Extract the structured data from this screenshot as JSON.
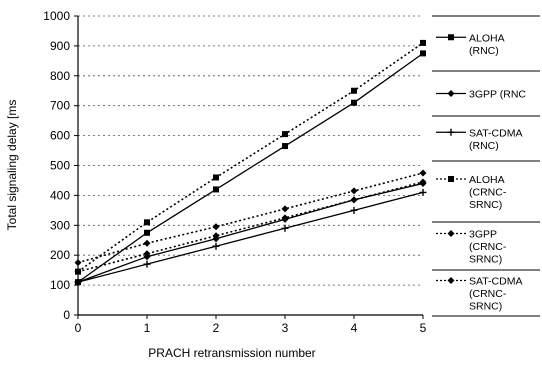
{
  "chart_data": {
    "type": "line",
    "title": "",
    "xlabel": "PRACH retransmission number",
    "ylabel": "Total signaling delay [ms",
    "x": [
      0,
      1,
      2,
      3,
      4,
      5
    ],
    "xticks": [
      "0",
      "1",
      "2",
      "3",
      "4",
      "5"
    ],
    "yticks": [
      "0",
      "100",
      "200",
      "300",
      "400",
      "500",
      "600",
      "700",
      "800",
      "900",
      "1000"
    ],
    "xlim": [
      0,
      5
    ],
    "ylim": [
      0,
      1000
    ],
    "grid": "horizontal dotted",
    "legend_position": "right",
    "series": [
      {
        "name": "ALOHA (RNC)",
        "legend_lines": [
          "ALOHA",
          "(RNC)"
        ],
        "marker": "square-filled",
        "dash": "solid",
        "values": [
          110,
          275,
          420,
          565,
          710,
          875
        ]
      },
      {
        "name": "3GPP (RNC",
        "legend_lines": [
          "3GPP (RNC"
        ],
        "marker": "diamond",
        "dash": "solid",
        "values": [
          110,
          195,
          255,
          320,
          385,
          440
        ]
      },
      {
        "name": "SAT-CDMA (RNC)",
        "legend_lines": [
          "SAT-CDMA",
          "(RNC)"
        ],
        "marker": "plus",
        "dash": "solid",
        "values": [
          110,
          170,
          230,
          290,
          350,
          410
        ]
      },
      {
        "name": "ALOHA (CRNC-SRNC)",
        "legend_lines": [
          "ALOHA",
          "(CRNC-",
          "SRNC)"
        ],
        "marker": "square-filled",
        "dash": "dotted",
        "values": [
          145,
          310,
          460,
          605,
          750,
          910
        ]
      },
      {
        "name": "3GPP (CRNC-SRNC)",
        "legend_lines": [
          "3GPP",
          "(CRNC-",
          "SRNC)"
        ],
        "marker": "diamond",
        "dash": "dotted",
        "values": [
          145,
          205,
          265,
          325,
          385,
          445
        ]
      },
      {
        "name": "SAT-CDMA (CRNC-SRNC)",
        "legend_lines": [
          "SAT-CDMA",
          "(CRNC-",
          "SRNC)"
        ],
        "marker": "diamond",
        "dash": "dotted",
        "values": [
          175,
          240,
          295,
          355,
          415,
          475
        ]
      }
    ]
  }
}
